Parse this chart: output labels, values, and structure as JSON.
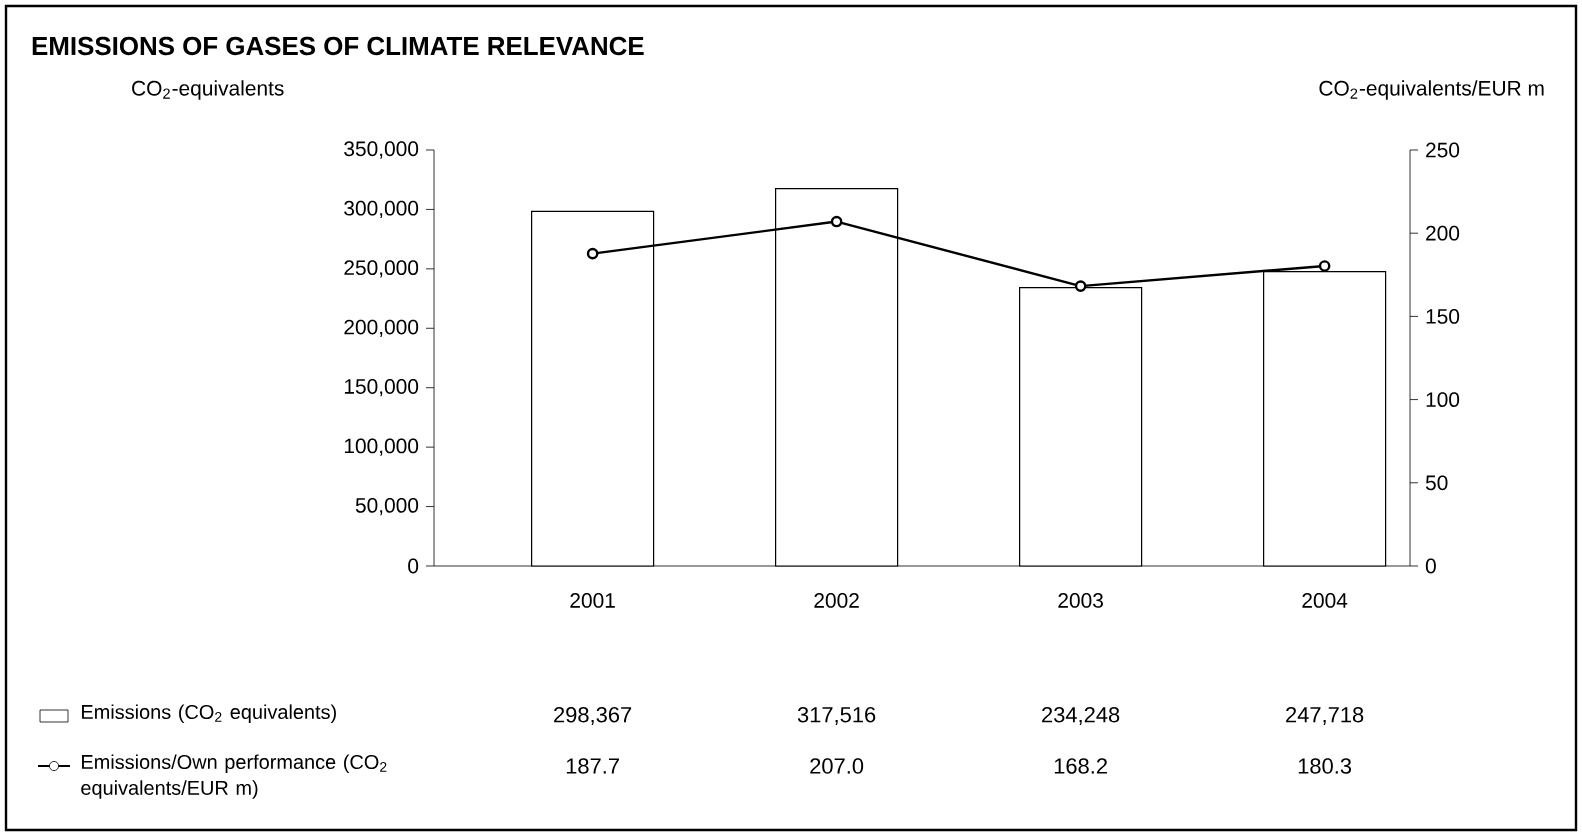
{
  "chart_data": {
    "type": "bar",
    "title": "EMISSIONS OF GASES OF CLIMATE RELEVANCE",
    "ylabel": "CO$_{2}$-equivalents",
    "y2label": "CO$_{2}$-equivalents/EUR m",
    "categories": [
      "2001",
      "2002",
      "2003",
      "2004"
    ],
    "series": [
      {
        "name": "Emissions (CO$_{2}$ equivalents)",
        "color": "#ffffff",
        "values": [
          298367,
          317516,
          234248,
          247718
        ],
        "value_labels": [
          "298,367",
          "317,516",
          "234,248",
          "247,718"
        ]
      },
      {
        "name": "Emissions/Own performance (CO$_{2}$ equivalents/EUR m)",
        "type": "line",
        "axis": "y2",
        "color": "#000000",
        "marker": "circle",
        "values": [
          187.7,
          207.0,
          168.2,
          180.3
        ],
        "value_labels": [
          "187.7",
          "207.0",
          "168.2",
          "180.3"
        ]
      }
    ],
    "ylim": [
      0,
      350000
    ],
    "yticks": [
      {
        "value": 0,
        "label": "0"
      },
      {
        "value": 50000,
        "label": "50,000"
      },
      {
        "value": 100000,
        "label": "100,000"
      },
      {
        "value": 150000,
        "label": "150,000"
      },
      {
        "value": 200000,
        "label": "200,000"
      },
      {
        "value": 250000,
        "label": "250,000"
      },
      {
        "value": 300000,
        "label": "300,000"
      },
      {
        "value": 350000,
        "label": "350,000"
      }
    ],
    "y2lim": [
      0,
      250
    ],
    "y2ticks": [
      0,
      50,
      100,
      150,
      200,
      250
    ],
    "legend": "bottom"
  }
}
